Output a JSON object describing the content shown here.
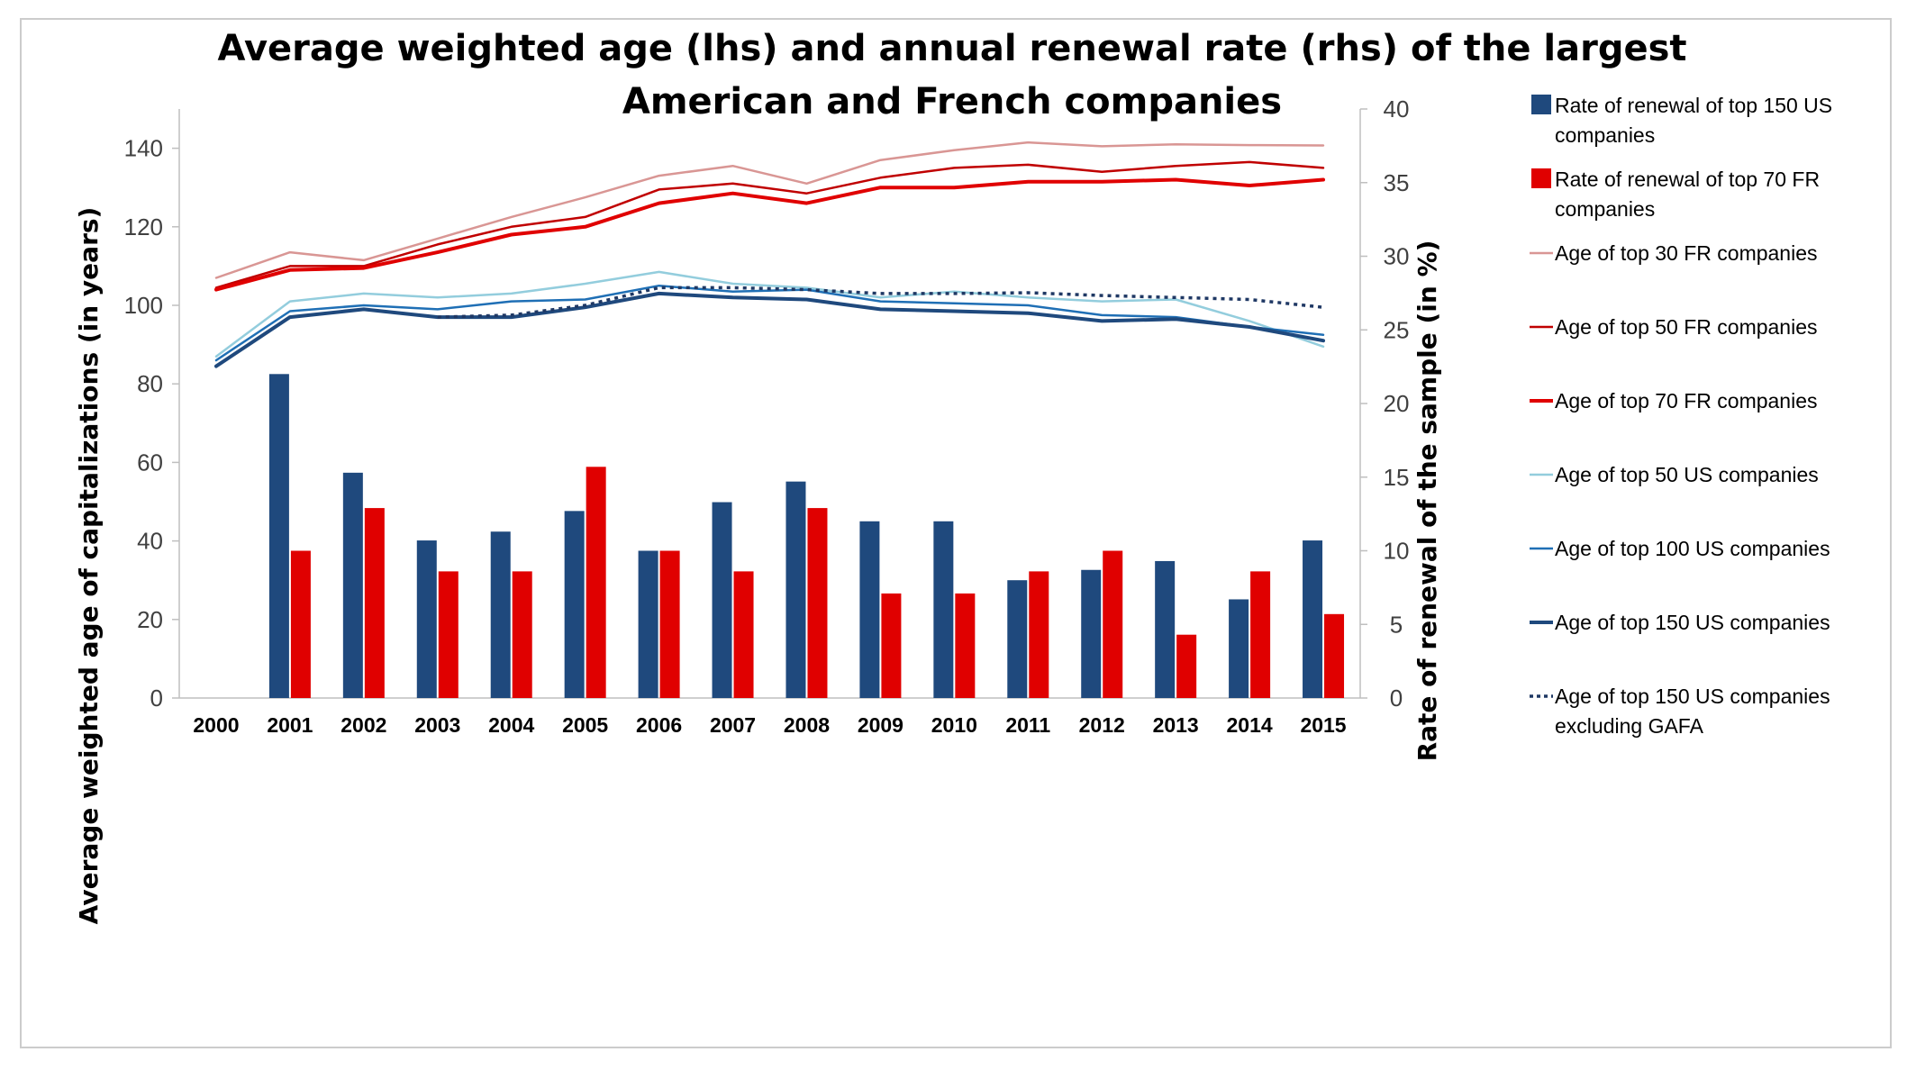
{
  "chart_data": {
    "type": "bar",
    "title": "Average weighted age (lhs) and annual renewal rate (rhs) of the largest American and French companies",
    "title_lines": [
      "Average weighted age (lhs) and annual renewal rate (rhs) of the largest",
      "American and French companies"
    ],
    "ylabel": "Average weighted age of capitalizations (in years)",
    "y2label": "Rate of renewal of the sample (in %)",
    "ylim": [
      0,
      150
    ],
    "y2lim": [
      0,
      40
    ],
    "yticks": [
      "0",
      "20",
      "40",
      "60",
      "80",
      "100",
      "120",
      "140"
    ],
    "y2ticks": [
      "0",
      "5",
      "10",
      "15",
      "20",
      "25",
      "30",
      "35",
      "40"
    ],
    "categories": [
      "2000",
      "2001",
      "2002",
      "2003",
      "2004",
      "2005",
      "2006",
      "2007",
      "2008",
      "2009",
      "2010",
      "2011",
      "2012",
      "2013",
      "2014",
      "2015"
    ],
    "grid": false,
    "legend_position": "right",
    "bar_series": [
      {
        "name": "Rate of renewal of top 150 US companies",
        "legend_lines": [
          "Rate of renewal of top 150 US",
          "companies"
        ],
        "axis": "right",
        "color": "#1f497d",
        "values": [
          null,
          22,
          15.3,
          10.7,
          11.3,
          12.7,
          10,
          13.3,
          14.7,
          12,
          12,
          8,
          8.7,
          9.3,
          6.7,
          10.7
        ]
      },
      {
        "name": "Rate of renewal of top 70 FR companies",
        "legend_lines": [
          "Rate of renewal of top 70 FR",
          "companies"
        ],
        "axis": "right",
        "color": "#e00000",
        "values": [
          null,
          10,
          12.9,
          8.6,
          8.6,
          15.7,
          10,
          8.6,
          12.9,
          7.1,
          7.1,
          8.6,
          10,
          4.3,
          8.6,
          5.7
        ]
      }
    ],
    "line_series": [
      {
        "name": "Age of top 30 FR companies",
        "legend_lines": [
          "Age of top 30 FR companies"
        ],
        "axis": "left",
        "color": "#d99694",
        "width": 2.5,
        "dash": "",
        "values": [
          107,
          113.5,
          111.5,
          117,
          122.5,
          127.5,
          133,
          135.5,
          131,
          137,
          139.5,
          141.5,
          140.5,
          141,
          140.8,
          140.7
        ]
      },
      {
        "name": "Age of top 50 FR companies",
        "legend_lines": [
          "Age of top 50 FR companies"
        ],
        "axis": "left",
        "color": "#c00000",
        "width": 2.5,
        "dash": "",
        "values": [
          104.5,
          110,
          110,
          115.5,
          120,
          122.5,
          129.5,
          131,
          128.5,
          132.5,
          135,
          135.8,
          134,
          135.5,
          136.5,
          135
        ]
      },
      {
        "name": "Age of top 70 FR companies",
        "legend_lines": [
          "Age of top 70 FR companies"
        ],
        "axis": "left",
        "color": "#e00000",
        "width": 4,
        "dash": "",
        "values": [
          104,
          109,
          109.5,
          113.5,
          118,
          120,
          126,
          128.5,
          126,
          130,
          130,
          131.5,
          131.5,
          132,
          130.5,
          132
        ]
      },
      {
        "name": "Age of top 50 US companies",
        "legend_lines": [
          "Age of top 50 US companies"
        ],
        "axis": "left",
        "color": "#93cddd",
        "width": 2.5,
        "dash": "",
        "values": [
          87,
          101,
          103,
          102,
          103,
          105.5,
          108.5,
          105.5,
          104.5,
          102,
          103.5,
          102,
          101,
          101.5,
          96,
          89.5
        ]
      },
      {
        "name": "Age of top 100 US companies",
        "legend_lines": [
          "Age of top 100 US companies"
        ],
        "axis": "left",
        "color": "#1f6fb5",
        "width": 2.5,
        "dash": "",
        "values": [
          86,
          98.5,
          100,
          99,
          101,
          101.5,
          105,
          103.5,
          104,
          101,
          100.5,
          100,
          97.5,
          97,
          94.5,
          92.5
        ]
      },
      {
        "name": "Age of top 150 US companies",
        "legend_lines": [
          "Age of top 150 US companies"
        ],
        "axis": "left",
        "color": "#1f497d",
        "width": 4,
        "dash": "",
        "values": [
          84.5,
          97,
          99,
          97,
          97,
          99.5,
          103,
          102,
          101.5,
          99,
          98.5,
          98,
          96,
          96.5,
          94.5,
          91
        ]
      },
      {
        "name": "Age of top 150 US companies excluding GAFA",
        "legend_lines": [
          "Age of top 150 US companies",
          "excluding GAFA"
        ],
        "axis": "left",
        "color": "#1f3864",
        "width": 3.5,
        "dash": "4,5",
        "values": [
          null,
          null,
          null,
          97,
          97.5,
          100,
          104.5,
          104.5,
          104,
          103,
          103,
          103.2,
          102.5,
          102,
          101.5,
          99.5
        ]
      }
    ]
  }
}
